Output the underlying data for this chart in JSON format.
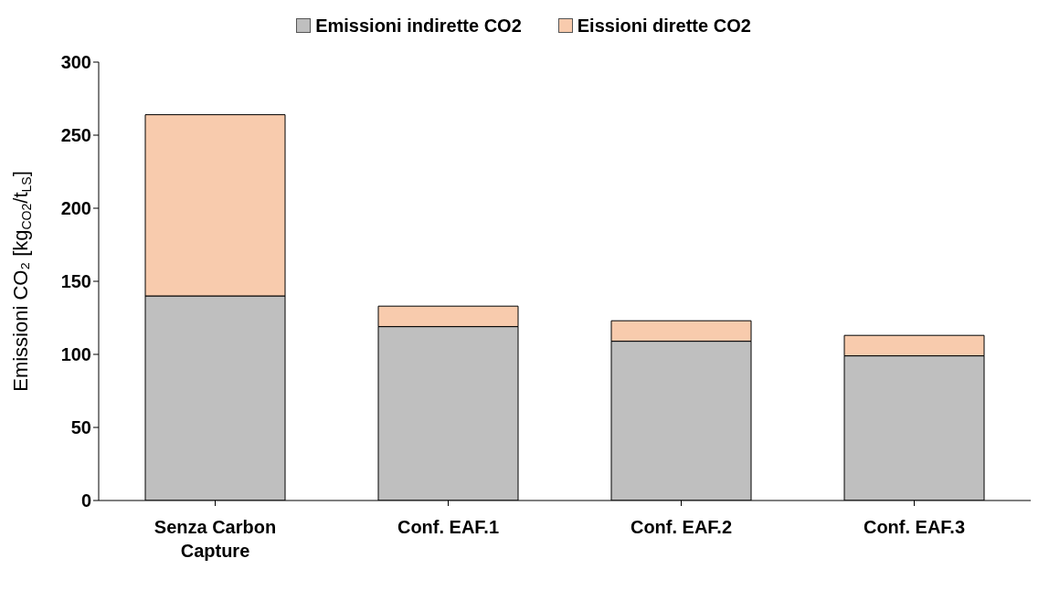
{
  "chart_data": {
    "type": "bar",
    "stacked": true,
    "ylabel": "Emissioni CO₂ [kg$_{CO2}$/t$_{LS}$]",
    "categories": [
      "Senza Carbon Capture",
      "Conf. EAF.1",
      "Conf. EAF.2",
      "Conf. EAF.3"
    ],
    "series": [
      {
        "name": "Emissioni indirette CO2",
        "color": "#bfbfbf",
        "values": [
          140,
          119,
          109,
          99
        ]
      },
      {
        "name": "Eissioni dirette CO2",
        "color": "#f8cbad",
        "values": [
          124,
          14,
          14,
          14
        ]
      }
    ],
    "ylim": [
      0,
      300
    ],
    "yticks": [
      0,
      50,
      100,
      150,
      200,
      250,
      300
    ],
    "grid": false,
    "legend": "top"
  }
}
